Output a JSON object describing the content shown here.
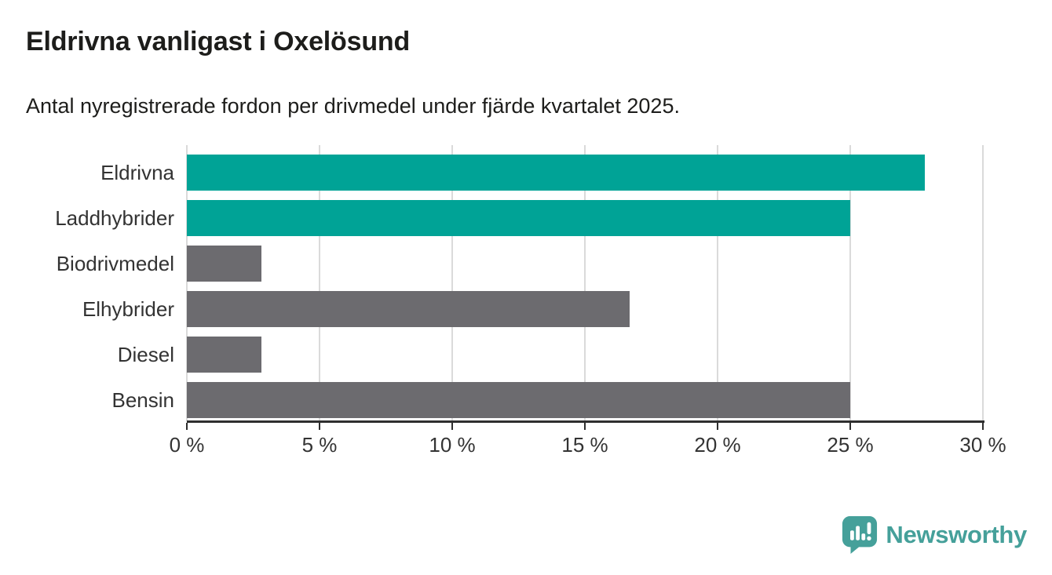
{
  "title": "Eldrivna vanligast i Oxelösund",
  "subtitle": "Antal nyregistrerade fordon per drivmedel under fjärde kvartalet 2025.",
  "chart_data": {
    "type": "bar",
    "orientation": "horizontal",
    "title": "Eldrivna vanligast i Oxelösund",
    "subtitle": "Antal nyregistrerade fordon per drivmedel under fjärde kvartalet 2025.",
    "categories": [
      "Eldrivna",
      "Laddhybrider",
      "Biodrivmedel",
      "Elhybrider",
      "Diesel",
      "Bensin"
    ],
    "values": [
      27.8,
      25.0,
      2.8,
      16.7,
      2.8,
      25.0
    ],
    "unit": "%",
    "xlabel": "",
    "ylabel": "",
    "xlim": [
      0,
      30
    ],
    "xtick_step": 5,
    "xtick_labels": [
      "0 %",
      "5 %",
      "10 %",
      "15 %",
      "20 %",
      "25 %",
      "30 %"
    ],
    "grid": true,
    "legend": false,
    "bar_color_roles": [
      "highlight",
      "highlight",
      "default",
      "default",
      "default",
      "default"
    ],
    "colors": {
      "highlight": "#00a396",
      "default": "#6c6b6f",
      "gridline": "#dadada",
      "axis": "#2e2e2e",
      "label_text": "#333333",
      "title_text": "#1d1d1b"
    }
  },
  "branding": {
    "name": "Newsworthy",
    "logo_icon": "bar-chart-speech-bubble-icon",
    "color": "#45a09a"
  }
}
